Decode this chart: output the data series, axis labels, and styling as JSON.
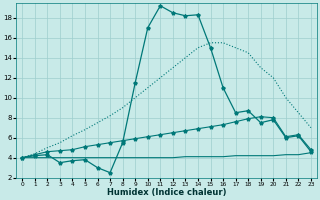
{
  "xlabel": "Humidex (Indice chaleur)",
  "xlim": [
    -0.5,
    23.5
  ],
  "ylim": [
    2,
    19.5
  ],
  "xticks": [
    0,
    1,
    2,
    3,
    4,
    5,
    6,
    7,
    8,
    9,
    10,
    11,
    12,
    13,
    14,
    15,
    16,
    17,
    18,
    19,
    20,
    21,
    22,
    23
  ],
  "yticks": [
    2,
    4,
    6,
    8,
    10,
    12,
    14,
    16,
    18
  ],
  "background_color": "#c8eae8",
  "grid_color": "#9ecece",
  "line_color": "#007878",
  "title_fontsize": 7,
  "curve_dotted_x": [
    0,
    1,
    2,
    3,
    4,
    5,
    6,
    7,
    8,
    9,
    10,
    11,
    12,
    13,
    14,
    15,
    16,
    17,
    18,
    19,
    20,
    21,
    22,
    23
  ],
  "curve_dotted_y": [
    4.0,
    4.4,
    5.0,
    5.5,
    6.2,
    6.8,
    7.5,
    8.2,
    9.0,
    10.0,
    11.0,
    12.0,
    13.0,
    14.0,
    15.0,
    15.5,
    15.5,
    15.0,
    14.5,
    13.0,
    12.0,
    10.0,
    8.5,
    7.0
  ],
  "curve_peak_x": [
    0,
    1,
    2,
    3,
    4,
    5,
    6,
    7,
    8,
    9,
    10,
    11,
    12,
    13,
    14,
    15,
    16,
    17,
    18,
    19,
    20,
    21,
    22,
    23
  ],
  "curve_peak_y": [
    4.0,
    4.2,
    4.3,
    3.5,
    3.7,
    3.8,
    3.0,
    2.5,
    5.5,
    11.5,
    17.0,
    19.2,
    18.5,
    18.2,
    18.3,
    15.0,
    11.0,
    8.5,
    8.7,
    7.5,
    7.8,
    6.0,
    6.2,
    4.6
  ],
  "curve_rise_x": [
    0,
    1,
    2,
    3,
    4,
    5,
    6,
    7,
    8,
    9,
    10,
    11,
    12,
    13,
    14,
    15,
    16,
    17,
    18,
    19,
    20,
    21,
    22,
    23
  ],
  "curve_rise_y": [
    4.0,
    4.3,
    4.6,
    4.7,
    4.8,
    5.1,
    5.3,
    5.5,
    5.7,
    5.9,
    6.1,
    6.3,
    6.5,
    6.7,
    6.9,
    7.1,
    7.3,
    7.6,
    7.9,
    8.1,
    8.0,
    6.1,
    6.3,
    4.8
  ],
  "curve_flat_x": [
    0,
    1,
    2,
    3,
    4,
    5,
    6,
    7,
    8,
    9,
    10,
    11,
    12,
    13,
    14,
    15,
    16,
    17,
    18,
    19,
    20,
    21,
    22,
    23
  ],
  "curve_flat_y": [
    4.0,
    4.0,
    4.0,
    4.0,
    4.0,
    4.0,
    4.0,
    4.0,
    4.0,
    4.0,
    4.0,
    4.0,
    4.0,
    4.1,
    4.1,
    4.1,
    4.1,
    4.2,
    4.2,
    4.2,
    4.2,
    4.3,
    4.3,
    4.5
  ]
}
